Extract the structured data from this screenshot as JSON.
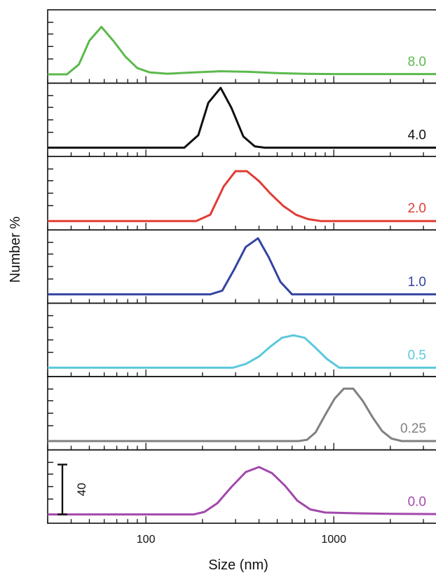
{
  "chart_data": {
    "type": "line",
    "layout": "stacked-panels",
    "title": "",
    "xlabel": "Size (nm)",
    "ylabel": "Number %",
    "xscale": "log",
    "xlim": [
      30,
      3500
    ],
    "x_ticks": [
      100,
      1000
    ],
    "x_tick_labels": [
      "100",
      "1000"
    ],
    "panel_ylim": [
      0,
      45
    ],
    "scale_bar": {
      "value": 40,
      "label": "40"
    },
    "series": [
      {
        "name": "8.0",
        "color": "#5cb94c",
        "x": [
          30,
          38,
          44,
          50,
          58,
          67,
          78,
          90,
          105,
          130,
          180,
          250,
          350,
          500,
          700,
          1000,
          2000,
          3500
        ],
        "y": [
          0,
          0,
          8,
          27,
          38,
          27,
          14,
          5,
          1.5,
          0.5,
          1.5,
          2.5,
          2.0,
          1.0,
          0.4,
          0.2,
          0.2,
          0.2
        ]
      },
      {
        "name": "4.0",
        "color": "#111111",
        "x": [
          30,
          160,
          190,
          215,
          250,
          285,
          330,
          380,
          430,
          3500
        ],
        "y": [
          0,
          0,
          10,
          36,
          48,
          32,
          9,
          1,
          0,
          0
        ]
      },
      {
        "name": "2.0",
        "color": "#e03c35",
        "x": [
          30,
          185,
          220,
          260,
          300,
          345,
          400,
          460,
          540,
          630,
          730,
          850,
          3500
        ],
        "y": [
          0,
          0,
          5,
          28,
          40,
          40,
          32,
          22,
          12,
          5,
          1.5,
          0,
          0
        ]
      },
      {
        "name": "1.0",
        "color": "#3344a0",
        "x": [
          30,
          220,
          255,
          295,
          340,
          395,
          450,
          520,
          600,
          3500
        ],
        "y": [
          0,
          0,
          3,
          20,
          38,
          45,
          30,
          10,
          0,
          0
        ]
      },
      {
        "name": "0.5",
        "color": "#5bc8dc",
        "x": [
          30,
          290,
          340,
          400,
          460,
          530,
          610,
          700,
          800,
          920,
          1070,
          3500
        ],
        "y": [
          0,
          0,
          3,
          9,
          17,
          24,
          26,
          24,
          16,
          7,
          0,
          0
        ]
      },
      {
        "name": "0.25",
        "color": "#808080",
        "x": [
          30,
          650,
          720,
          800,
          900,
          1010,
          1130,
          1270,
          1430,
          1610,
          1810,
          2030,
          2300,
          3500
        ],
        "y": [
          0,
          0,
          1,
          7,
          21,
          34,
          42,
          42,
          32,
          19,
          8,
          2,
          0,
          0
        ]
      },
      {
        "name": "0.0",
        "color": "#a348ac",
        "x": [
          30,
          180,
          205,
          240,
          285,
          340,
          400,
          470,
          550,
          640,
          750,
          900,
          1200,
          2000,
          3500
        ],
        "y": [
          0,
          0,
          2,
          9,
          22,
          34,
          38,
          33,
          23,
          11,
          4,
          1.5,
          1,
          0.5,
          0.3
        ]
      }
    ]
  }
}
